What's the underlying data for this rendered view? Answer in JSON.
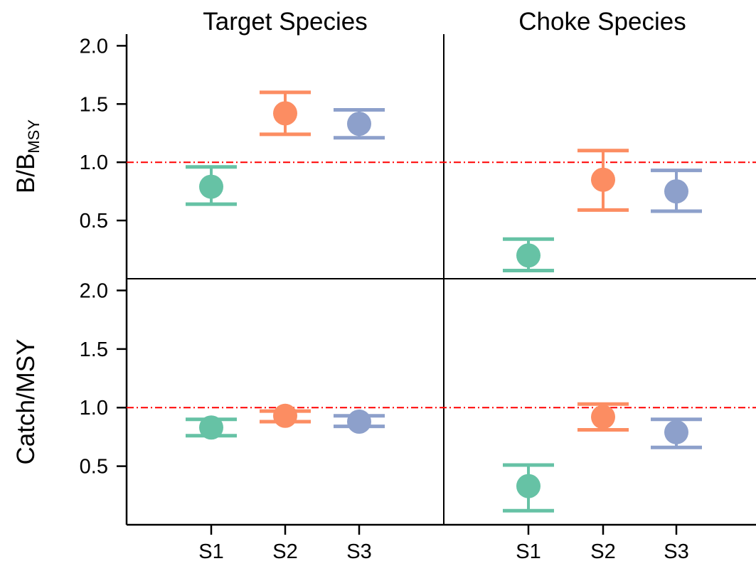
{
  "chart_data": {
    "type": "scatter",
    "layout": "2x2 panel grid (rows share y-axis, columns share x-axis)",
    "column_titles": [
      "Target Species",
      "Choke Species"
    ],
    "row_ylabels": [
      {
        "main": "B/B",
        "sub": "MSY"
      },
      {
        "main": "Catch/MSY",
        "sub": ""
      }
    ],
    "categories": [
      "S1",
      "S2",
      "S3"
    ],
    "yticks": [
      0.5,
      1.0,
      1.5,
      2.0
    ],
    "ytick_labels": [
      "0.5",
      "1.0",
      "1.5",
      "2.0"
    ],
    "ylim": [
      0,
      2.1
    ],
    "reference_line": {
      "y": 1.0,
      "color": "#ff0000",
      "style": "dash-dot"
    },
    "series_colors": [
      "#66c2a5",
      "#fc8d62",
      "#8da0cb"
    ],
    "panels": [
      {
        "row": 0,
        "col": 0,
        "points": [
          {
            "category": "S1",
            "value": 0.79,
            "low": 0.64,
            "high": 0.96
          },
          {
            "category": "S2",
            "value": 1.42,
            "low": 1.24,
            "high": 1.6
          },
          {
            "category": "S3",
            "value": 1.33,
            "low": 1.21,
            "high": 1.45
          }
        ]
      },
      {
        "row": 0,
        "col": 1,
        "points": [
          {
            "category": "S1",
            "value": 0.2,
            "low": 0.07,
            "high": 0.34
          },
          {
            "category": "S2",
            "value": 0.85,
            "low": 0.59,
            "high": 1.1
          },
          {
            "category": "S3",
            "value": 0.75,
            "low": 0.58,
            "high": 0.93
          }
        ]
      },
      {
        "row": 1,
        "col": 0,
        "points": [
          {
            "category": "S1",
            "value": 0.83,
            "low": 0.76,
            "high": 0.9
          },
          {
            "category": "S2",
            "value": 0.93,
            "low": 0.88,
            "high": 0.97
          },
          {
            "category": "S3",
            "value": 0.88,
            "low": 0.84,
            "high": 0.93
          }
        ]
      },
      {
        "row": 1,
        "col": 1,
        "points": [
          {
            "category": "S1",
            "value": 0.33,
            "low": 0.12,
            "high": 0.51
          },
          {
            "category": "S2",
            "value": 0.92,
            "low": 0.81,
            "high": 1.03
          },
          {
            "category": "S3",
            "value": 0.79,
            "low": 0.66,
            "high": 0.9
          }
        ]
      }
    ]
  }
}
